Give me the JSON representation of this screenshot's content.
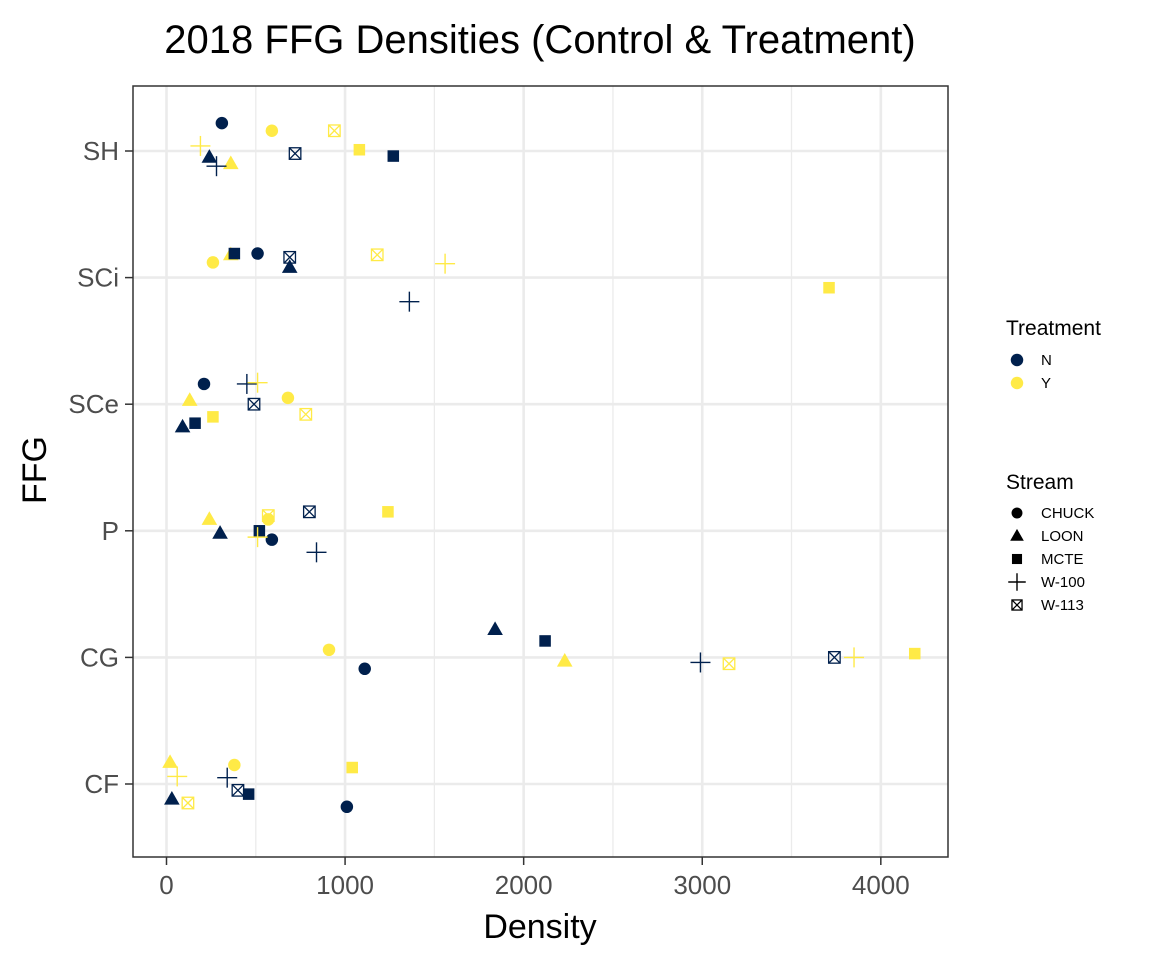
{
  "chart_data": {
    "type": "scatter",
    "title": "2018 FFG Densities (Control & Treatment)",
    "xlabel": "Density",
    "ylabel": "FFG",
    "xlim": [
      -180,
      4400
    ],
    "xticks": [
      0,
      1000,
      2000,
      3000,
      4000
    ],
    "xtick_labels": [
      "0",
      "1000",
      "2000",
      "3000",
      "4000"
    ],
    "categories": [
      "CF",
      "CG",
      "P",
      "SCe",
      "SCi",
      "SH"
    ],
    "grid": true,
    "legend_position": "right",
    "treatment_legend": {
      "title": "Treatment",
      "entries": [
        {
          "label": "N",
          "color": "#00204D"
        },
        {
          "label": "Y",
          "color": "#FFEA46"
        }
      ]
    },
    "stream_legend": {
      "title": "Stream",
      "entries": [
        {
          "label": "CHUCK",
          "shape": "circle"
        },
        {
          "label": "LOON",
          "shape": "triangle"
        },
        {
          "label": "MCTE",
          "shape": "square"
        },
        {
          "label": "W-100",
          "shape": "plus"
        },
        {
          "label": "W-113",
          "shape": "boxx"
        }
      ]
    },
    "points": [
      {
        "ffg": "SH",
        "stream": "CHUCK",
        "treatment": "N",
        "density": 310,
        "y": 0.22
      },
      {
        "ffg": "SH",
        "stream": "CHUCK",
        "treatment": "Y",
        "density": 590,
        "y": 0.16
      },
      {
        "ffg": "SH",
        "stream": "LOON",
        "treatment": "N",
        "density": 240,
        "y": -0.05
      },
      {
        "ffg": "SH",
        "stream": "LOON",
        "treatment": "Y",
        "density": 360,
        "y": -0.1
      },
      {
        "ffg": "SH",
        "stream": "MCTE",
        "treatment": "N",
        "density": 1270,
        "y": -0.04
      },
      {
        "ffg": "SH",
        "stream": "MCTE",
        "treatment": "Y",
        "density": 1080,
        "y": 0.01
      },
      {
        "ffg": "SH",
        "stream": "W-100",
        "treatment": "N",
        "density": 280,
        "y": -0.12
      },
      {
        "ffg": "SH",
        "stream": "W-100",
        "treatment": "Y",
        "density": 190,
        "y": 0.04
      },
      {
        "ffg": "SH",
        "stream": "W-113",
        "treatment": "N",
        "density": 720,
        "y": -0.02
      },
      {
        "ffg": "SH",
        "stream": "W-113",
        "treatment": "Y",
        "density": 940,
        "y": 0.16
      },
      {
        "ffg": "SCi",
        "stream": "CHUCK",
        "treatment": "N",
        "density": 510,
        "y": 0.19
      },
      {
        "ffg": "SCi",
        "stream": "CHUCK",
        "treatment": "Y",
        "density": 260,
        "y": 0.12
      },
      {
        "ffg": "SCi",
        "stream": "LOON",
        "treatment": "N",
        "density": 690,
        "y": 0.08
      },
      {
        "ffg": "SCi",
        "stream": "LOON",
        "treatment": "Y",
        "density": 360,
        "y": 0.18
      },
      {
        "ffg": "SCi",
        "stream": "MCTE",
        "treatment": "N",
        "density": 380,
        "y": 0.19
      },
      {
        "ffg": "SCi",
        "stream": "MCTE",
        "treatment": "Y",
        "density": 3710,
        "y": -0.08
      },
      {
        "ffg": "SCi",
        "stream": "W-100",
        "treatment": "N",
        "density": 1360,
        "y": -0.19
      },
      {
        "ffg": "SCi",
        "stream": "W-100",
        "treatment": "Y",
        "density": 1560,
        "y": 0.11
      },
      {
        "ffg": "SCi",
        "stream": "W-113",
        "treatment": "N",
        "density": 690,
        "y": 0.16
      },
      {
        "ffg": "SCi",
        "stream": "W-113",
        "treatment": "Y",
        "density": 1180,
        "y": 0.18
      },
      {
        "ffg": "SCe",
        "stream": "CHUCK",
        "treatment": "N",
        "density": 210,
        "y": 0.16
      },
      {
        "ffg": "SCe",
        "stream": "CHUCK",
        "treatment": "Y",
        "density": 680,
        "y": 0.05
      },
      {
        "ffg": "SCe",
        "stream": "LOON",
        "treatment": "N",
        "density": 90,
        "y": -0.18
      },
      {
        "ffg": "SCe",
        "stream": "LOON",
        "treatment": "Y",
        "density": 130,
        "y": 0.03
      },
      {
        "ffg": "SCe",
        "stream": "MCTE",
        "treatment": "N",
        "density": 160,
        "y": -0.15
      },
      {
        "ffg": "SCe",
        "stream": "MCTE",
        "treatment": "Y",
        "density": 260,
        "y": -0.1
      },
      {
        "ffg": "SCe",
        "stream": "W-100",
        "treatment": "N",
        "density": 450,
        "y": 0.16
      },
      {
        "ffg": "SCe",
        "stream": "W-100",
        "treatment": "Y",
        "density": 510,
        "y": 0.17
      },
      {
        "ffg": "SCe",
        "stream": "W-113",
        "treatment": "N",
        "density": 490,
        "y": 0.0
      },
      {
        "ffg": "SCe",
        "stream": "W-113",
        "treatment": "Y",
        "density": 780,
        "y": -0.08
      },
      {
        "ffg": "P",
        "stream": "CHUCK",
        "treatment": "N",
        "density": 590,
        "y": -0.07
      },
      {
        "ffg": "P",
        "stream": "CHUCK",
        "treatment": "Y",
        "density": 570,
        "y": 0.09
      },
      {
        "ffg": "P",
        "stream": "LOON",
        "treatment": "N",
        "density": 300,
        "y": -0.02
      },
      {
        "ffg": "P",
        "stream": "LOON",
        "treatment": "Y",
        "density": 240,
        "y": 0.09
      },
      {
        "ffg": "P",
        "stream": "MCTE",
        "treatment": "N",
        "density": 520,
        "y": 0.0
      },
      {
        "ffg": "P",
        "stream": "MCTE",
        "treatment": "Y",
        "density": 1240,
        "y": 0.15
      },
      {
        "ffg": "P",
        "stream": "W-100",
        "treatment": "N",
        "density": 840,
        "y": -0.17
      },
      {
        "ffg": "P",
        "stream": "W-100",
        "treatment": "Y",
        "density": 510,
        "y": -0.05
      },
      {
        "ffg": "P",
        "stream": "W-113",
        "treatment": "N",
        "density": 800,
        "y": 0.15
      },
      {
        "ffg": "P",
        "stream": "W-113",
        "treatment": "Y",
        "density": 570,
        "y": 0.12
      },
      {
        "ffg": "CG",
        "stream": "CHUCK",
        "treatment": "N",
        "density": 1110,
        "y": -0.09
      },
      {
        "ffg": "CG",
        "stream": "CHUCK",
        "treatment": "Y",
        "density": 910,
        "y": 0.06
      },
      {
        "ffg": "CG",
        "stream": "LOON",
        "treatment": "N",
        "density": 1840,
        "y": 0.22
      },
      {
        "ffg": "CG",
        "stream": "LOON",
        "treatment": "Y",
        "density": 2230,
        "y": -0.03
      },
      {
        "ffg": "CG",
        "stream": "MCTE",
        "treatment": "N",
        "density": 2120,
        "y": 0.13
      },
      {
        "ffg": "CG",
        "stream": "MCTE",
        "treatment": "Y",
        "density": 4190,
        "y": 0.03
      },
      {
        "ffg": "CG",
        "stream": "W-100",
        "treatment": "N",
        "density": 2990,
        "y": -0.04
      },
      {
        "ffg": "CG",
        "stream": "W-100",
        "treatment": "Y",
        "density": 3850,
        "y": 0.0
      },
      {
        "ffg": "CG",
        "stream": "W-113",
        "treatment": "N",
        "density": 3740,
        "y": 0.0
      },
      {
        "ffg": "CG",
        "stream": "W-113",
        "treatment": "Y",
        "density": 3150,
        "y": -0.05
      },
      {
        "ffg": "CF",
        "stream": "CHUCK",
        "treatment": "N",
        "density": 1010,
        "y": -0.18
      },
      {
        "ffg": "CF",
        "stream": "CHUCK",
        "treatment": "Y",
        "density": 380,
        "y": 0.15
      },
      {
        "ffg": "CF",
        "stream": "LOON",
        "treatment": "N",
        "density": 30,
        "y": -0.12
      },
      {
        "ffg": "CF",
        "stream": "LOON",
        "treatment": "Y",
        "density": 20,
        "y": 0.17
      },
      {
        "ffg": "CF",
        "stream": "MCTE",
        "treatment": "N",
        "density": 460,
        "y": -0.08
      },
      {
        "ffg": "CF",
        "stream": "MCTE",
        "treatment": "Y",
        "density": 1040,
        "y": 0.13
      },
      {
        "ffg": "CF",
        "stream": "W-100",
        "treatment": "N",
        "density": 340,
        "y": 0.05
      },
      {
        "ffg": "CF",
        "stream": "W-100",
        "treatment": "Y",
        "density": 60,
        "y": 0.06
      },
      {
        "ffg": "CF",
        "stream": "W-113",
        "treatment": "N",
        "density": 400,
        "y": -0.05
      },
      {
        "ffg": "CF",
        "stream": "W-113",
        "treatment": "Y",
        "density": 120,
        "y": -0.15
      }
    ]
  }
}
